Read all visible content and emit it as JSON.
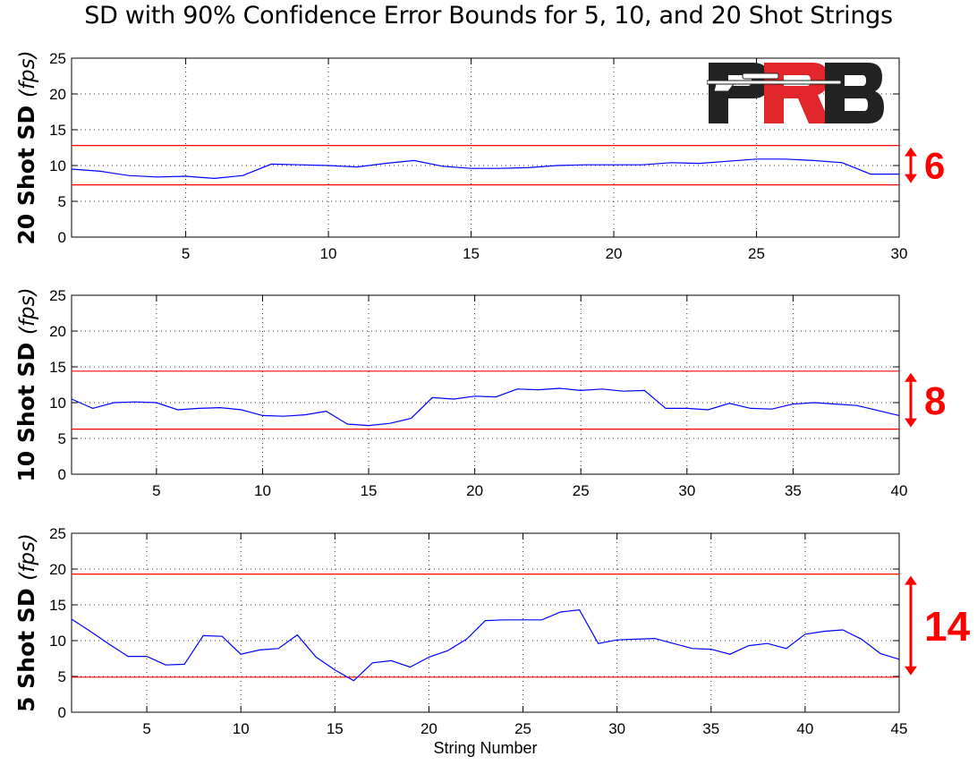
{
  "title": "SD with 90% Confidence Error Bounds for 5, 10, and 20 Shot Strings",
  "xlabel": "String Number",
  "logo_text": "PRB",
  "colors": {
    "series": "#0000ff",
    "bounds": "#ff0000",
    "annotation": "#ff0000",
    "logo_dark": "#222222",
    "logo_red": "#e0262b"
  },
  "chart_data": [
    {
      "type": "line",
      "ylabel": "20 Shot SD",
      "ylabel_unit": "(fps)",
      "xlim": [
        1,
        30
      ],
      "ylim": [
        0,
        25
      ],
      "xticks": [
        5,
        10,
        15,
        20,
        25,
        30
      ],
      "yticks": [
        0,
        5,
        10,
        15,
        20,
        25
      ],
      "grid": true,
      "x": [
        1,
        2,
        3,
        4,
        5,
        6,
        7,
        8,
        9,
        10,
        11,
        12,
        13,
        14,
        15,
        16,
        17,
        18,
        19,
        20,
        21,
        22,
        23,
        24,
        25,
        26,
        27,
        28,
        29,
        30
      ],
      "series": [
        {
          "values": [
            9.5,
            9.2,
            8.6,
            8.4,
            8.5,
            8.2,
            8.6,
            10.2,
            10.1,
            10.0,
            9.8,
            10.3,
            10.7,
            9.9,
            9.6,
            9.6,
            9.7,
            10.0,
            10.1,
            10.1,
            10.1,
            10.4,
            10.3,
            10.6,
            10.9,
            10.9,
            10.7,
            10.4,
            8.8,
            8.8
          ]
        }
      ],
      "bounds": [
        7.3,
        12.8
      ],
      "spread_label": "6"
    },
    {
      "type": "line",
      "ylabel": "10 Shot SD",
      "ylabel_unit": "(fps)",
      "xlim": [
        1,
        40
      ],
      "ylim": [
        0,
        25
      ],
      "xticks": [
        5,
        10,
        15,
        20,
        25,
        30,
        35,
        40
      ],
      "yticks": [
        0,
        5,
        10,
        15,
        20,
        25
      ],
      "grid": true,
      "x": [
        1,
        2,
        3,
        4,
        5,
        6,
        7,
        8,
        9,
        10,
        11,
        12,
        13,
        14,
        15,
        16,
        17,
        18,
        19,
        20,
        21,
        22,
        23,
        24,
        25,
        26,
        27,
        28,
        29,
        30,
        31,
        32,
        33,
        34,
        35,
        36,
        37,
        38,
        39,
        40
      ],
      "series": [
        {
          "values": [
            10.5,
            9.2,
            10.0,
            10.1,
            10.0,
            9.0,
            9.2,
            9.3,
            9.0,
            8.2,
            8.1,
            8.3,
            8.8,
            7.0,
            6.8,
            7.1,
            7.8,
            10.7,
            10.5,
            10.9,
            10.8,
            11.9,
            11.8,
            12.0,
            11.7,
            11.9,
            11.6,
            11.7,
            9.2,
            9.2,
            9.0,
            9.9,
            9.2,
            9.1,
            9.8,
            10.0,
            9.8,
            9.6,
            8.9,
            8.2
          ]
        }
      ],
      "bounds": [
        6.3,
        14.4
      ],
      "spread_label": "8"
    },
    {
      "type": "line",
      "ylabel": "5 Shot SD",
      "ylabel_unit": "(fps)",
      "xlim": [
        1,
        45
      ],
      "ylim": [
        0,
        25
      ],
      "xticks": [
        5,
        10,
        15,
        20,
        25,
        30,
        35,
        40,
        45
      ],
      "yticks": [
        0,
        5,
        10,
        15,
        20,
        25
      ],
      "grid": true,
      "x": [
        1,
        2,
        3,
        4,
        5,
        6,
        7,
        8,
        9,
        10,
        11,
        12,
        13,
        14,
        15,
        16,
        17,
        18,
        19,
        20,
        21,
        22,
        23,
        24,
        25,
        26,
        27,
        28,
        29,
        30,
        31,
        32,
        33,
        34,
        35,
        36,
        37,
        38,
        39,
        40,
        41,
        42,
        43,
        44,
        45
      ],
      "series": [
        {
          "values": [
            13.0,
            11.3,
            9.5,
            7.8,
            7.8,
            6.6,
            6.7,
            10.7,
            10.6,
            8.1,
            8.7,
            8.9,
            10.8,
            7.7,
            5.9,
            4.4,
            6.9,
            7.2,
            6.3,
            7.7,
            8.6,
            10.2,
            12.8,
            12.9,
            12.9,
            12.9,
            14.0,
            14.3,
            9.6,
            10.1,
            10.2,
            10.3,
            9.6,
            8.9,
            8.8,
            8.1,
            9.3,
            9.6,
            8.9,
            10.9,
            11.3,
            11.5,
            10.2,
            8.2,
            7.4
          ]
        }
      ],
      "bounds": [
        4.9,
        19.3
      ],
      "spread_label": "14"
    }
  ]
}
